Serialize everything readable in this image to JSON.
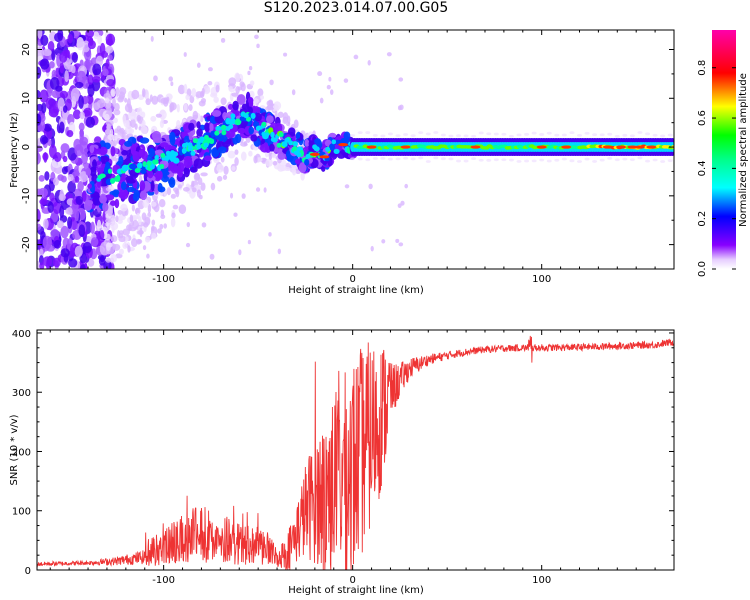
{
  "figure": {
    "title": "S120.2023.014.07.00.G05"
  },
  "chart_data": [
    {
      "type": "heatmap",
      "title": "",
      "xlabel": "Height of straight line (km)",
      "ylabel": "Frequency (Hz)",
      "xlim": [
        -167,
        170
      ],
      "ylim": [
        -25,
        24
      ],
      "xticks": [
        -100,
        0,
        100
      ],
      "xtick_labels": [
        "-100",
        "0",
        "100"
      ],
      "yticks": [
        -20,
        -10,
        0,
        10,
        20
      ],
      "ytick_labels": [
        "-20",
        "-10",
        "0",
        "10",
        "20"
      ],
      "grid": false,
      "colormap": "rainbow (purple-blue-cyan-green-yellow-red-pink)",
      "colorbar": {
        "label": "Normalized spectral amplitude",
        "range": [
          0,
          0.95
        ],
        "ticks": [
          0.0,
          0.2,
          0.4,
          0.6,
          0.8
        ],
        "tick_labels": [
          "0.0",
          "0.2",
          "0.4",
          "0.6",
          "0.8"
        ]
      },
      "ridge": {
        "x": [
          -130,
          -120,
          -110,
          -100,
          -90,
          -80,
          -70,
          -60,
          -55,
          -50,
          -45,
          -40,
          -35,
          -30,
          -25,
          -20,
          -15,
          -10,
          -5,
          0,
          10,
          30,
          60,
          100,
          140,
          170
        ],
        "y": [
          -6,
          -5,
          -4,
          -3,
          -1,
          1,
          3,
          6,
          7,
          4,
          3,
          2,
          1,
          0,
          -2,
          -1,
          -2,
          0,
          1,
          -1,
          0,
          0,
          0,
          0,
          0,
          0
        ]
      }
    },
    {
      "type": "line",
      "title": "",
      "xlabel": "Height of straight line (km)",
      "ylabel": "SNR (10 * v/v)",
      "xlim": [
        -167,
        170
      ],
      "ylim": [
        0,
        405
      ],
      "xticks": [
        -100,
        0,
        100
      ],
      "xtick_labels": [
        "-100",
        "0",
        "100"
      ],
      "yticks": [
        0,
        100,
        200,
        300,
        400
      ],
      "ytick_labels": [
        "0",
        "100",
        "200",
        "300",
        "400"
      ],
      "grid": false,
      "color": "#ee3333",
      "envelope": {
        "x": [
          -167,
          -140,
          -125,
          -110,
          -100,
          -90,
          -80,
          -70,
          -60,
          -50,
          -40,
          -35,
          -30,
          -25,
          -20,
          -15,
          -10,
          -5,
          0,
          5,
          10,
          15,
          20,
          25,
          30,
          40,
          50,
          60,
          70,
          80,
          90,
          100,
          120,
          140,
          160,
          170
        ],
        "mid": [
          10,
          12,
          15,
          22,
          30,
          45,
          50,
          45,
          35,
          32,
          20,
          30,
          60,
          100,
          120,
          130,
          150,
          160,
          170,
          200,
          230,
          260,
          300,
          320,
          340,
          355,
          362,
          368,
          372,
          374,
          375,
          375,
          376,
          378,
          380,
          385
        ],
        "spread": [
          6,
          6,
          12,
          20,
          25,
          30,
          35,
          30,
          25,
          25,
          15,
          30,
          50,
          80,
          110,
          130,
          150,
          170,
          190,
          180,
          160,
          130,
          80,
          50,
          30,
          15,
          12,
          10,
          10,
          10,
          10,
          10,
          10,
          10,
          10,
          10
        ]
      }
    }
  ]
}
